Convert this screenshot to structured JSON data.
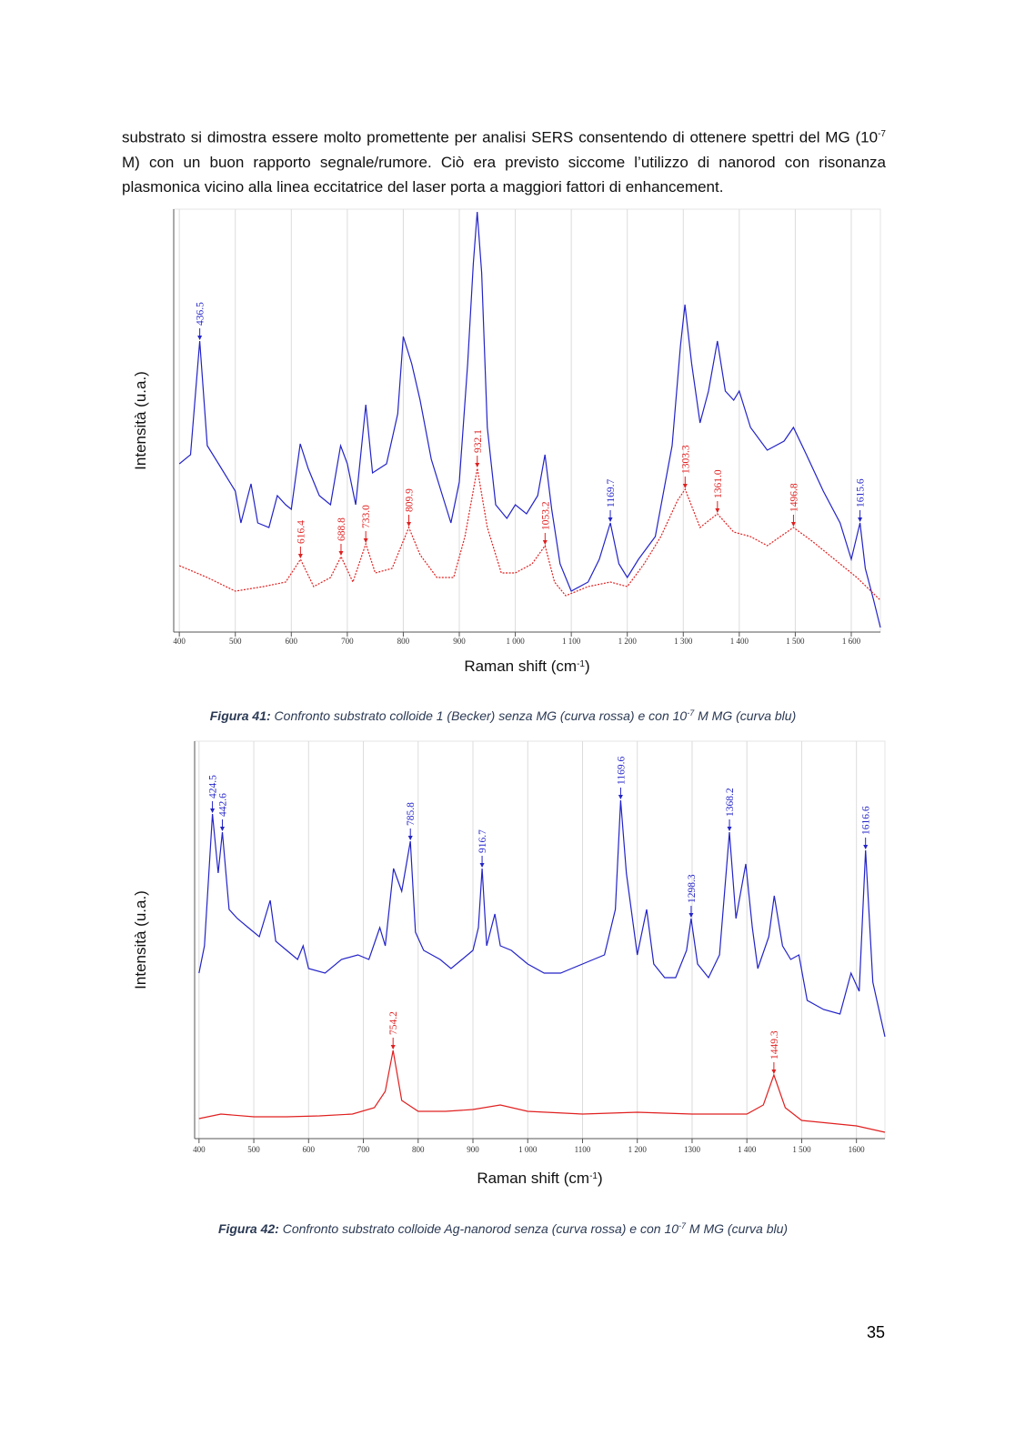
{
  "paragraph": [
    "substrato si dimostra essere molto promettente per analisi SERS consentendo di ottenere spettri del MG (10",
    "-7",
    " M) con un buon rapporto segnale/rumore. Ciò era previsto siccome l’utilizzo di nanorod con risonanza plasmonica vicino alla linea eccitatrice del laser porta a maggiori fattori di enhancement."
  ],
  "page_number": "35",
  "chart_data": [
    {
      "type": "line",
      "xlabel": [
        "Raman shift (cm",
        "-1",
        ")"
      ],
      "ylabel": "Intensità (u.a.)",
      "caption": {
        "label": "Figura 41:",
        "text": [
          " Confronto substrato colloide 1 (Becker) senza MG (curva rossa) e con 10",
          "-7",
          " M MG (curva blu)"
        ]
      },
      "xlim": [
        390,
        1652
      ],
      "ylim": [
        0,
        465
      ],
      "grid": true,
      "xticks": [
        400,
        500,
        600,
        700,
        800,
        900,
        {
          "value": 1000,
          "label": "1 000"
        },
        {
          "value": 1100,
          "label": "1 100"
        },
        {
          "value": 1200,
          "label": "1 200"
        },
        {
          "value": 1300,
          "label": "1 300"
        },
        {
          "value": 1400,
          "label": "1 400"
        },
        {
          "value": 1500,
          "label": "1 500"
        },
        {
          "value": 1600,
          "label": "1 600"
        }
      ],
      "series": [
        {
          "color": "#2323c8",
          "x": [
            400,
            420,
            436.5,
            450,
            470,
            500,
            510,
            528,
            540,
            560,
            575,
            590,
            600,
            616,
            630,
            650,
            670,
            688,
            700,
            715,
            733,
            745,
            770,
            790,
            800,
            815,
            830,
            850,
            870,
            885,
            900,
            915,
            925,
            932,
            940,
            950,
            965,
            985,
            1000,
            1020,
            1040,
            1053,
            1065,
            1080,
            1100,
            1130,
            1150,
            1169.7,
            1185,
            1200,
            1220,
            1250,
            1280,
            1295,
            1303,
            1315,
            1330,
            1345,
            1361,
            1375,
            1390,
            1400,
            1420,
            1450,
            1480,
            1496.8,
            1520,
            1550,
            1580,
            1600,
            1615.6,
            1625,
            1640,
            1652
          ],
          "values": [
            185,
            195,
            320,
            205,
            185,
            155,
            120,
            163,
            120,
            115,
            150,
            140,
            135,
            207,
            180,
            150,
            140,
            205,
            185,
            140,
            250,
            175,
            185,
            240,
            325,
            295,
            255,
            190,
            150,
            120,
            165,
            295,
            405,
            462,
            395,
            225,
            140,
            125,
            140,
            130,
            150,
            195,
            135,
            75,
            45,
            55,
            80,
            120,
            75,
            60,
            80,
            105,
            205,
            315,
            360,
            295,
            230,
            265,
            320,
            265,
            255,
            265,
            225,
            200,
            210,
            225,
            195,
            155,
            120,
            80,
            120,
            70,
            35,
            5
          ],
          "peaks": [
            436.5,
            1169.7,
            1615.6
          ]
        },
        {
          "color": "#e02020",
          "dash": true,
          "x": [
            400,
            450,
            500,
            550,
            590,
            616.4,
            640,
            670,
            688.8,
            710,
            733,
            750,
            780,
            809.9,
            830,
            860,
            890,
            910,
            932.1,
            950,
            975,
            1000,
            1030,
            1053.2,
            1070,
            1090,
            1130,
            1169.7,
            1200,
            1230,
            1260,
            1290,
            1303.3,
            1330,
            1361,
            1390,
            1420,
            1450,
            1496.8,
            1530,
            1570,
            1610,
            1652
          ],
          "values": [
            73,
            60,
            45,
            50,
            55,
            80,
            50,
            60,
            83,
            55,
            97,
            65,
            70,
            115,
            85,
            60,
            60,
            105,
            180,
            115,
            65,
            65,
            75,
            95,
            55,
            40,
            50,
            55,
            50,
            75,
            105,
            145,
            157,
            115,
            130,
            110,
            105,
            95,
            115,
            100,
            80,
            60,
            35
          ],
          "peaks": [
            616.4,
            688.8,
            {
              "value": 733,
              "label": "733.0"
            },
            809.9,
            932.1,
            1053.2,
            1303.3,
            {
              "value": 1361,
              "label": "1361.0"
            },
            1496.8
          ]
        }
      ]
    },
    {
      "type": "line",
      "xlabel": [
        "Raman shift (cm",
        "-1",
        ")"
      ],
      "ylabel": "Intensità (u.a.)",
      "caption": {
        "label": "Figura 42:",
        "text": [
          " Confronto substrato colloide Ag-nanorod senza (curva rossa) e con 10",
          "-7",
          " M MG (curva blu)"
        ]
      },
      "xlim": [
        392,
        1652
      ],
      "ylim": [
        0,
        437
      ],
      "grid": true,
      "xticks": [
        400,
        500,
        600,
        700,
        800,
        900,
        {
          "value": 1000,
          "label": "1 000"
        },
        1100,
        {
          "value": 1200,
          "label": "1 200"
        },
        1300,
        {
          "value": 1400,
          "label": "1 400"
        },
        {
          "value": 1500,
          "label": "1 500"
        },
        1600
      ],
      "series": [
        {
          "color": "#2323c8",
          "x": [
            400,
            410,
            424.5,
            435,
            442.6,
            455,
            470,
            490,
            510,
            530,
            540,
            560,
            580,
            590,
            600,
            630,
            660,
            690,
            710,
            730,
            740,
            755,
            770,
            785.8,
            795,
            810,
            840,
            860,
            880,
            900,
            910,
            916.7,
            925,
            940,
            950,
            970,
            1000,
            1030,
            1060,
            1080,
            1100,
            1140,
            1160,
            1169.6,
            1180,
            1200,
            1217,
            1230,
            1250,
            1270,
            1290,
            1298.3,
            1310,
            1330,
            1350,
            1368.2,
            1380,
            1398,
            1410,
            1420,
            1440,
            1450,
            1465,
            1480,
            1495,
            1510,
            1540,
            1570,
            1590,
            1605,
            1616.6,
            1630,
            1652
          ],
          "values": [
            182,
            212,
            357,
            292,
            337,
            252,
            242,
            232,
            222,
            262,
            217,
            207,
            197,
            212,
            187,
            182,
            197,
            202,
            197,
            232,
            212,
            297,
            272,
            327,
            227,
            207,
            197,
            187,
            197,
            207,
            232,
            297,
            212,
            247,
            212,
            207,
            192,
            182,
            182,
            187,
            192,
            202,
            252,
            372,
            292,
            202,
            252,
            192,
            177,
            177,
            207,
            242,
            192,
            177,
            202,
            337,
            242,
            302,
            232,
            187,
            222,
            267,
            212,
            197,
            202,
            152,
            142,
            137,
            182,
            162,
            317,
            172,
            112
          ],
          "peaks": [
            424.5,
            442.6,
            785.8,
            916.7,
            1169.6,
            1298.3,
            1368.2,
            1616.6
          ]
        },
        {
          "color": "#e02020",
          "x": [
            400,
            440,
            500,
            560,
            620,
            680,
            720,
            740,
            754.2,
            770,
            800,
            850,
            900,
            950,
            1000,
            1100,
            1200,
            1300,
            1400,
            1430,
            1449.3,
            1470,
            1500,
            1550,
            1600,
            1652
          ],
          "values": [
            22,
            27,
            24,
            24,
            25,
            27,
            34,
            52,
            97,
            42,
            30,
            30,
            32,
            37,
            30,
            27,
            29,
            27,
            27,
            37,
            70,
            34,
            20,
            17,
            14,
            7
          ],
          "peaks": [
            754.2,
            1449.3
          ]
        }
      ]
    }
  ]
}
